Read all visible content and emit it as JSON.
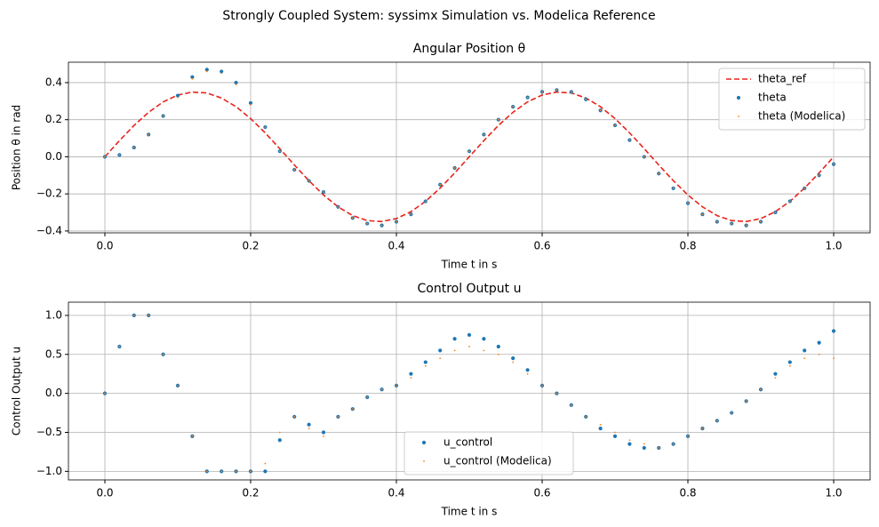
{
  "figure_title": "Strongly Coupled System: syssimx Simulation vs. Modelica Reference",
  "chart_data": [
    {
      "type": "line",
      "title": "Angular Position θ",
      "x_label": "Time t in s",
      "y_label": "Position θ in rad",
      "x": [
        0,
        0.02,
        0.04,
        0.06,
        0.08,
        0.1,
        0.12,
        0.14,
        0.16,
        0.18,
        0.2,
        0.22,
        0.24,
        0.26,
        0.28,
        0.3,
        0.32,
        0.34,
        0.36,
        0.38,
        0.4,
        0.42,
        0.44,
        0.46,
        0.48,
        0.5,
        0.52,
        0.54,
        0.56,
        0.58,
        0.6,
        0.62,
        0.64,
        0.66,
        0.68,
        0.7,
        0.72,
        0.74,
        0.76,
        0.78,
        0.8,
        0.82,
        0.84,
        0.86,
        0.88,
        0.9,
        0.92,
        0.94,
        0.96,
        0.98,
        1.0
      ],
      "xlim": [
        -0.05,
        1.05
      ],
      "xticks": [
        {
          "value": 0,
          "label": "0.0"
        },
        {
          "value": 0.2,
          "label": "0.2"
        },
        {
          "value": 0.4,
          "label": "0.4"
        },
        {
          "value": 0.6,
          "label": "0.6"
        },
        {
          "value": 0.8,
          "label": "0.8"
        },
        {
          "value": 1,
          "label": "1.0"
        }
      ],
      "ylim": [
        -0.41,
        0.51
      ],
      "yticks": [
        {
          "value": -0.4,
          "label": "−0.4"
        },
        {
          "value": -0.2,
          "label": "−0.2"
        },
        {
          "value": 0,
          "label": "0.0"
        },
        {
          "value": 0.2,
          "label": "0.2"
        },
        {
          "value": 0.4,
          "label": "0.4"
        }
      ],
      "grid": true,
      "legend": "upper right",
      "series": [
        {
          "name": "theta_ref",
          "kind": "dashed-line",
          "color": "#e8231c",
          "values": [
            0,
            0.087,
            0.169,
            0.24,
            0.296,
            0.333,
            0.349,
            0.344,
            0.317,
            0.27,
            0.206,
            0.129,
            0.044,
            -0.044,
            -0.129,
            -0.206,
            -0.27,
            -0.317,
            -0.344,
            -0.349,
            -0.333,
            -0.296,
            -0.24,
            -0.169,
            -0.087,
            0,
            0.087,
            0.169,
            0.24,
            0.296,
            0.333,
            0.349,
            0.344,
            0.317,
            0.27,
            0.206,
            0.129,
            0.044,
            -0.044,
            -0.129,
            -0.206,
            -0.27,
            -0.317,
            -0.344,
            -0.349,
            -0.333,
            -0.296,
            -0.24,
            -0.169,
            -0.087,
            0
          ]
        },
        {
          "name": "theta",
          "kind": "markers",
          "color": "#1f77b4",
          "values": [
            0,
            0.01,
            0.05,
            0.12,
            0.22,
            0.33,
            0.43,
            0.47,
            0.46,
            0.4,
            0.29,
            0.16,
            0.03,
            -0.07,
            -0.13,
            -0.19,
            -0.27,
            -0.33,
            -0.36,
            -0.37,
            -0.35,
            -0.31,
            -0.24,
            -0.15,
            -0.06,
            0.03,
            0.12,
            0.2,
            0.27,
            0.32,
            0.35,
            0.36,
            0.35,
            0.31,
            0.25,
            0.17,
            0.09,
            0,
            -0.09,
            -0.17,
            -0.25,
            -0.31,
            -0.35,
            -0.36,
            -0.37,
            -0.35,
            -0.3,
            -0.24,
            -0.17,
            -0.1,
            -0.04
          ]
        },
        {
          "name": "theta (Modelica)",
          "kind": "small-markers",
          "color": "#ff7f0e",
          "values": [
            0,
            0.01,
            0.05,
            0.12,
            0.22,
            0.32,
            0.42,
            0.46,
            0.45,
            0.39,
            0.28,
            0.16,
            0.03,
            -0.07,
            -0.13,
            -0.19,
            -0.27,
            -0.33,
            -0.36,
            -0.37,
            -0.35,
            -0.31,
            -0.24,
            -0.15,
            -0.06,
            0.03,
            0.12,
            0.2,
            0.27,
            0.32,
            0.35,
            0.36,
            0.35,
            0.31,
            0.25,
            0.17,
            0.09,
            0,
            -0.09,
            -0.17,
            -0.25,
            -0.31,
            -0.35,
            -0.36,
            -0.37,
            -0.35,
            -0.3,
            -0.24,
            -0.17,
            -0.1,
            -0.04
          ]
        }
      ]
    },
    {
      "type": "scatter",
      "title": "Control Output u",
      "x_label": "Time t in s",
      "y_label": "Control Output u",
      "x": [
        0,
        0.02,
        0.04,
        0.06,
        0.08,
        0.1,
        0.12,
        0.14,
        0.16,
        0.18,
        0.2,
        0.22,
        0.24,
        0.26,
        0.28,
        0.3,
        0.32,
        0.34,
        0.36,
        0.38,
        0.4,
        0.42,
        0.44,
        0.46,
        0.48,
        0.5,
        0.52,
        0.54,
        0.56,
        0.58,
        0.6,
        0.62,
        0.64,
        0.66,
        0.68,
        0.7,
        0.72,
        0.74,
        0.76,
        0.78,
        0.8,
        0.82,
        0.84,
        0.86,
        0.88,
        0.9,
        0.92,
        0.94,
        0.96,
        0.98,
        1.0
      ],
      "xlim": [
        -0.05,
        1.05
      ],
      "xticks": [
        {
          "value": 0,
          "label": "0.0"
        },
        {
          "value": 0.2,
          "label": "0.2"
        },
        {
          "value": 0.4,
          "label": "0.4"
        },
        {
          "value": 0.6,
          "label": "0.6"
        },
        {
          "value": 0.8,
          "label": "0.8"
        },
        {
          "value": 1,
          "label": "1.0"
        }
      ],
      "ylim": [
        -1.11,
        1.17
      ],
      "yticks": [
        {
          "value": -1,
          "label": "−1.0"
        },
        {
          "value": -0.5,
          "label": "−0.5"
        },
        {
          "value": 0,
          "label": "0.0"
        },
        {
          "value": 0.5,
          "label": "0.5"
        },
        {
          "value": 1,
          "label": "1.0"
        }
      ],
      "grid": true,
      "legend": "lower center",
      "series": [
        {
          "name": "u_control",
          "kind": "markers",
          "color": "#1f77b4",
          "values": [
            0,
            0.6,
            1.0,
            1.0,
            0.5,
            0.1,
            -0.55,
            -1.0,
            -1.0,
            -1.0,
            -1.0,
            -1.0,
            -0.6,
            -0.3,
            -0.4,
            -0.5,
            -0.3,
            -0.2,
            -0.05,
            0.05,
            0.1,
            0.25,
            0.4,
            0.55,
            0.7,
            0.75,
            0.7,
            0.6,
            0.45,
            0.3,
            0.1,
            0,
            -0.15,
            -0.3,
            -0.45,
            -0.55,
            -0.65,
            -0.7,
            -0.7,
            -0.65,
            -0.55,
            -0.45,
            -0.35,
            -0.25,
            -0.1,
            0.05,
            0.25,
            0.4,
            0.55,
            0.65,
            0.8
          ]
        },
        {
          "name": "u_control (Modelica)",
          "kind": "small-markers",
          "color": "#ff7f0e",
          "values": [
            0,
            0.6,
            1.0,
            1.0,
            0.5,
            0.1,
            -0.55,
            -1.0,
            -1.0,
            -1.0,
            -1.0,
            -0.9,
            -0.5,
            -0.3,
            -0.45,
            -0.55,
            -0.3,
            -0.2,
            -0.05,
            0.05,
            0.1,
            0.2,
            0.35,
            0.45,
            0.55,
            0.6,
            0.55,
            0.5,
            0.4,
            0.25,
            0.1,
            0,
            -0.15,
            -0.3,
            -0.4,
            -0.5,
            -0.6,
            -0.65,
            -0.7,
            -0.65,
            -0.55,
            -0.45,
            -0.35,
            -0.25,
            -0.1,
            0.05,
            0.2,
            0.35,
            0.45,
            0.5,
            0.45
          ]
        }
      ]
    }
  ]
}
